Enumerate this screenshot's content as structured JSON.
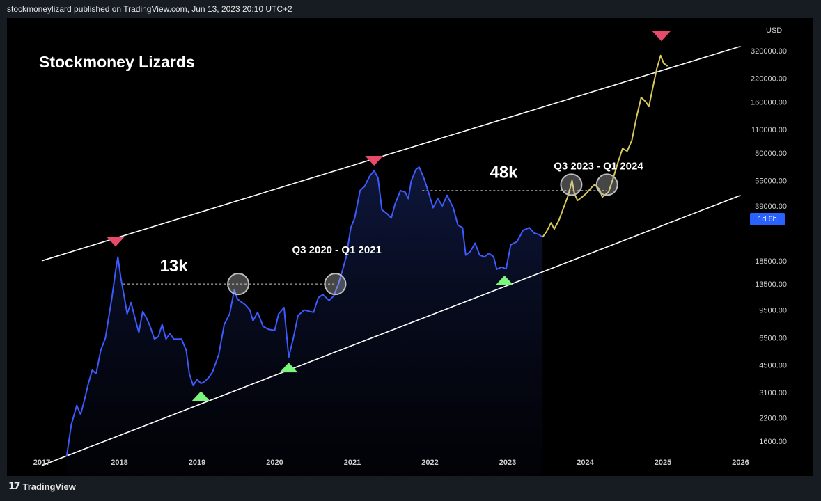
{
  "header": {
    "publisher_line": "stockmoneylizard published on TradingView.com, Jun 13, 2023 20:10 UTC+2"
  },
  "footer": {
    "brand": "TradingView"
  },
  "chart_data": {
    "type": "line",
    "title": "Stockmoney Lizards",
    "currency_label": "USD",
    "scale": "log",
    "timeframe_badge": "1d 6h",
    "x_ticks": [
      "2017",
      "2018",
      "2019",
      "2020",
      "2021",
      "2022",
      "2023",
      "2024",
      "2025",
      "2026"
    ],
    "y_ticks": [
      {
        "label": "320000.00",
        "value": 320000
      },
      {
        "label": "220000.00",
        "value": 220000
      },
      {
        "label": "160000.00",
        "value": 160000
      },
      {
        "label": "110000.00",
        "value": 110000
      },
      {
        "label": "80000.00",
        "value": 80000
      },
      {
        "label": "55000.00",
        "value": 55000
      },
      {
        "label": "39000.00",
        "value": 39000
      },
      {
        "label": "18500.00",
        "value": 18500
      },
      {
        "label": "13500.00",
        "value": 13500
      },
      {
        "label": "9500.00",
        "value": 9500
      },
      {
        "label": "6500.00",
        "value": 6500
      },
      {
        "label": "4500.00",
        "value": 4500
      },
      {
        "label": "3100.00",
        "value": 3100
      },
      {
        "label": "2200.00",
        "value": 2200
      },
      {
        "label": "1600.00",
        "value": 1600
      }
    ],
    "series": [
      {
        "color": "#3d5afe",
        "points": [
          [
            2017.32,
            1300
          ],
          [
            2017.38,
            2000
          ],
          [
            2017.45,
            2600
          ],
          [
            2017.5,
            2300
          ],
          [
            2017.55,
            2800
          ],
          [
            2017.6,
            3500
          ],
          [
            2017.65,
            4200
          ],
          [
            2017.7,
            4000
          ],
          [
            2017.76,
            5500
          ],
          [
            2017.82,
            6500
          ],
          [
            2017.86,
            8500
          ],
          [
            2017.9,
            11000
          ],
          [
            2017.95,
            16000
          ],
          [
            2017.98,
            19500
          ],
          [
            2018.02,
            14500
          ],
          [
            2018.06,
            11500
          ],
          [
            2018.1,
            9000
          ],
          [
            2018.15,
            10500
          ],
          [
            2018.2,
            8500
          ],
          [
            2018.25,
            7000
          ],
          [
            2018.3,
            9300
          ],
          [
            2018.35,
            8500
          ],
          [
            2018.4,
            7500
          ],
          [
            2018.45,
            6400
          ],
          [
            2018.5,
            6600
          ],
          [
            2018.55,
            7800
          ],
          [
            2018.6,
            6400
          ],
          [
            2018.65,
            6900
          ],
          [
            2018.7,
            6400
          ],
          [
            2018.8,
            6400
          ],
          [
            2018.86,
            5500
          ],
          [
            2018.9,
            4000
          ],
          [
            2018.95,
            3400
          ],
          [
            2019.0,
            3700
          ],
          [
            2019.05,
            3500
          ],
          [
            2019.1,
            3600
          ],
          [
            2019.15,
            3800
          ],
          [
            2019.2,
            4100
          ],
          [
            2019.28,
            5200
          ],
          [
            2019.35,
            7800
          ],
          [
            2019.42,
            9000
          ],
          [
            2019.48,
            12500
          ],
          [
            2019.52,
            11000
          ],
          [
            2019.58,
            10500
          ],
          [
            2019.62,
            10200
          ],
          [
            2019.68,
            9500
          ],
          [
            2019.72,
            8200
          ],
          [
            2019.78,
            9200
          ],
          [
            2019.85,
            7600
          ],
          [
            2019.92,
            7300
          ],
          [
            2020.0,
            7200
          ],
          [
            2020.05,
            9000
          ],
          [
            2020.12,
            9800
          ],
          [
            2020.18,
            5000
          ],
          [
            2020.24,
            6500
          ],
          [
            2020.3,
            8800
          ],
          [
            2020.38,
            9500
          ],
          [
            2020.45,
            9300
          ],
          [
            2020.5,
            9200
          ],
          [
            2020.56,
            11200
          ],
          [
            2020.62,
            11700
          ],
          [
            2020.7,
            10800
          ],
          [
            2020.76,
            11500
          ],
          [
            2020.82,
            13500
          ],
          [
            2020.86,
            15500
          ],
          [
            2020.92,
            19500
          ],
          [
            2020.98,
            29000
          ],
          [
            2021.03,
            33000
          ],
          [
            2021.1,
            48000
          ],
          [
            2021.16,
            51000
          ],
          [
            2021.22,
            58000
          ],
          [
            2021.28,
            63000
          ],
          [
            2021.33,
            57000
          ],
          [
            2021.38,
            37000
          ],
          [
            2021.45,
            35000
          ],
          [
            2021.5,
            33000
          ],
          [
            2021.55,
            40000
          ],
          [
            2021.62,
            48000
          ],
          [
            2021.68,
            47000
          ],
          [
            2021.72,
            43000
          ],
          [
            2021.76,
            55000
          ],
          [
            2021.82,
            64000
          ],
          [
            2021.86,
            66000
          ],
          [
            2021.92,
            57000
          ],
          [
            2021.98,
            47000
          ],
          [
            2022.04,
            38000
          ],
          [
            2022.1,
            43000
          ],
          [
            2022.16,
            39000
          ],
          [
            2022.22,
            45000
          ],
          [
            2022.3,
            38000
          ],
          [
            2022.36,
            30000
          ],
          [
            2022.42,
            29000
          ],
          [
            2022.46,
            20000
          ],
          [
            2022.52,
            21000
          ],
          [
            2022.58,
            23500
          ],
          [
            2022.64,
            20000
          ],
          [
            2022.7,
            19500
          ],
          [
            2022.76,
            20500
          ],
          [
            2022.82,
            19500
          ],
          [
            2022.86,
            16500
          ],
          [
            2022.92,
            17000
          ],
          [
            2022.98,
            16600
          ],
          [
            2023.04,
            23000
          ],
          [
            2023.12,
            24000
          ],
          [
            2023.2,
            28000
          ],
          [
            2023.28,
            29000
          ],
          [
            2023.34,
            27000
          ],
          [
            2023.4,
            26500
          ],
          [
            2023.45,
            25500
          ]
        ]
      },
      {
        "color": "#d9c95a",
        "points": [
          [
            2023.45,
            25500
          ],
          [
            2023.5,
            27500
          ],
          [
            2023.56,
            31000
          ],
          [
            2023.6,
            28500
          ],
          [
            2023.66,
            32000
          ],
          [
            2023.72,
            38000
          ],
          [
            2023.78,
            45000
          ],
          [
            2023.83,
            55000
          ],
          [
            2023.86,
            46000
          ],
          [
            2023.9,
            42000
          ],
          [
            2023.96,
            44000
          ],
          [
            2024.02,
            46500
          ],
          [
            2024.08,
            50000
          ],
          [
            2024.12,
            52000
          ],
          [
            2024.18,
            49000
          ],
          [
            2024.22,
            44000
          ],
          [
            2024.26,
            45500
          ],
          [
            2024.3,
            47000
          ],
          [
            2024.35,
            55000
          ],
          [
            2024.42,
            70000
          ],
          [
            2024.48,
            85000
          ],
          [
            2024.54,
            82000
          ],
          [
            2024.6,
            95000
          ],
          [
            2024.66,
            130000
          ],
          [
            2024.72,
            170000
          ],
          [
            2024.78,
            160000
          ],
          [
            2024.82,
            150000
          ],
          [
            2024.86,
            185000
          ],
          [
            2024.92,
            250000
          ],
          [
            2024.97,
            300000
          ],
          [
            2025.01,
            270000
          ],
          [
            2025.06,
            260000
          ]
        ]
      }
    ],
    "channel_lines": [
      {
        "name": "upper",
        "x1": 2017.0,
        "y1": 18500,
        "x2": 2026.0,
        "y2": 340000,
        "color": "#ffffff"
      },
      {
        "name": "lower",
        "x1": 2017.0,
        "y1": 1150,
        "x2": 2026.0,
        "y2": 45000,
        "color": "#ffffff"
      }
    ],
    "markers": [
      {
        "type": "top",
        "x": 2017.95,
        "y": 24000,
        "color": "#e84a6a"
      },
      {
        "type": "top",
        "x": 2021.28,
        "y": 72000,
        "color": "#e84a6a"
      },
      {
        "type": "top",
        "x": 2024.98,
        "y": 390000,
        "color": "#e84a6a"
      },
      {
        "type": "bottom",
        "x": 2019.05,
        "y": 2950,
        "color": "#7cf57c"
      },
      {
        "type": "bottom",
        "x": 2020.18,
        "y": 4350,
        "color": "#7cf57c"
      },
      {
        "type": "bottom",
        "x": 2022.96,
        "y": 14200,
        "color": "#7cf57c"
      }
    ],
    "circles": [
      {
        "x": 2019.53,
        "y": 13500
      },
      {
        "x": 2020.78,
        "y": 13500
      },
      {
        "x": 2023.82,
        "y": 52000
      },
      {
        "x": 2024.28,
        "y": 52000
      }
    ],
    "dashed_levels": [
      {
        "y": 13500,
        "x1": 2018.05,
        "x2": 2020.78
      },
      {
        "y": 48000,
        "x1": 2021.9,
        "x2": 2024.28
      }
    ],
    "annotations": [
      {
        "text": "13k",
        "x": 2018.7,
        "y": 16000,
        "size": 24
      },
      {
        "text": "Q3 2020 - Q1 2021",
        "x": 2020.8,
        "y": 20500,
        "size": 15
      },
      {
        "text": "48k",
        "x": 2022.95,
        "y": 57000,
        "size": 24
      },
      {
        "text": "Q3 2023 - Q1 2024",
        "x": 2024.17,
        "y": 64000,
        "size": 15
      }
    ]
  }
}
